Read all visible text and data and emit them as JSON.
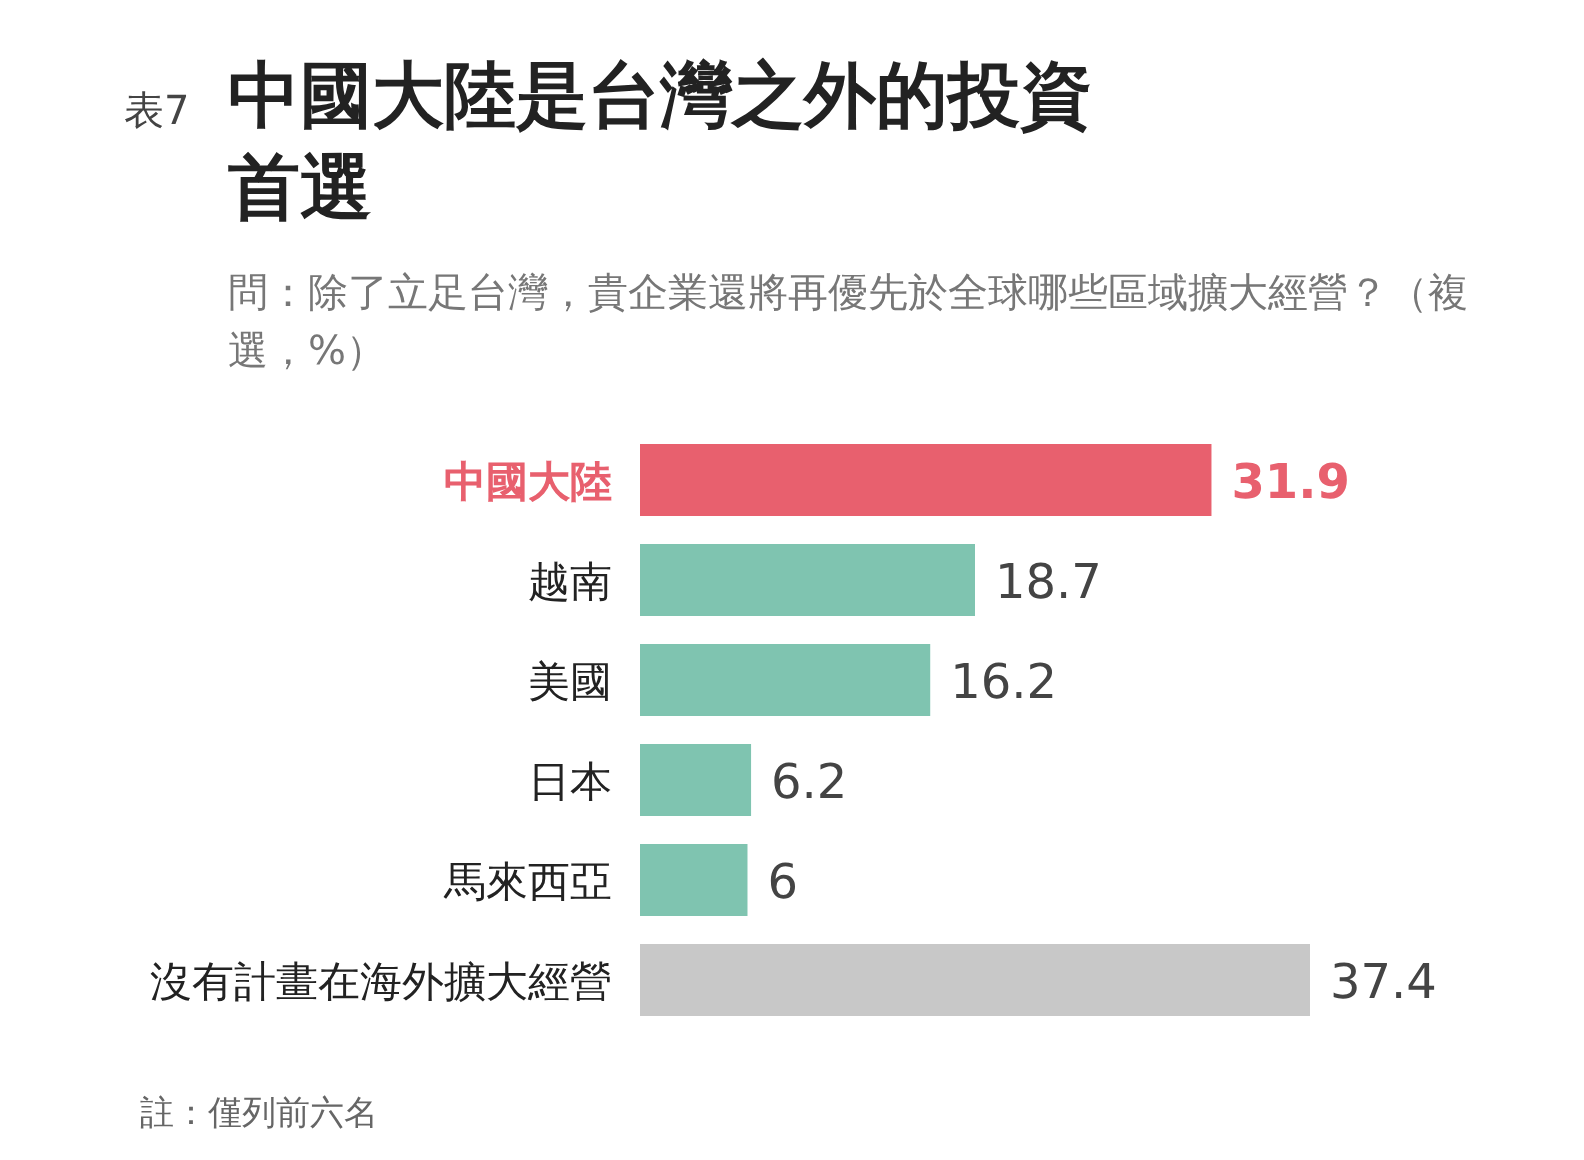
{
  "chart_data": {
    "type": "bar",
    "orientation": "horizontal",
    "title": "中國大陸是台灣之外的投資首選",
    "subtitle": "問：除了立足台灣，貴企業還將再優先於全球哪些區域擴大經營？（複選，%）",
    "categories": [
      "中國大陸",
      "越南",
      "美國",
      "日本",
      "馬來西亞",
      "沒有計畫在海外擴大經營"
    ],
    "values": [
      31.9,
      18.7,
      16.2,
      6.2,
      6,
      37.4
    ],
    "colors": [
      "#e8606e",
      "#7fc4b0",
      "#7fc4b0",
      "#7fc4b0",
      "#7fc4b0",
      "#c8c8c8"
    ],
    "data_labels": true,
    "annotations": [
      "表7",
      "註：僅列前六名"
    ]
  }
}
